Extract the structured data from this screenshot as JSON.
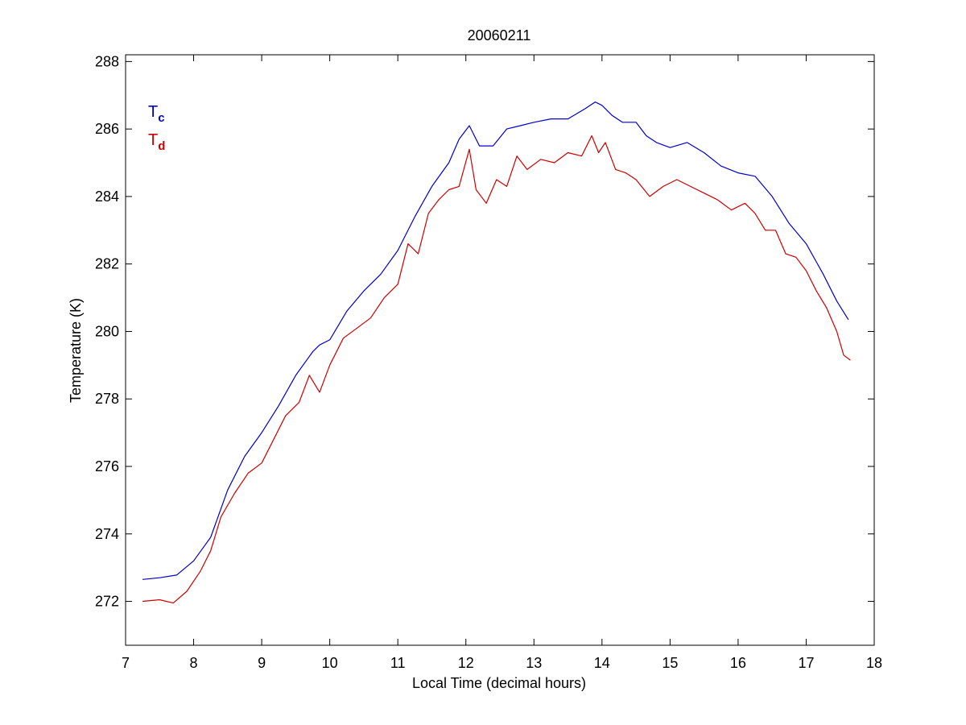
{
  "chart_data": {
    "type": "line",
    "title": "20060211",
    "xlabel": "Local Time (decimal hours)",
    "ylabel": "Temperature (K)",
    "xlim": [
      7,
      18
    ],
    "ylim": [
      270.7,
      288.2
    ],
    "xticks": [
      "7",
      "8",
      "9",
      "10",
      "11",
      "12",
      "13",
      "14",
      "15",
      "16",
      "17",
      "18"
    ],
    "yticks": [
      "272",
      "274",
      "276",
      "278",
      "280",
      "282",
      "284",
      "286",
      "288"
    ],
    "grid": false,
    "legend_position": "top-left",
    "series": [
      {
        "name": "T_c",
        "legend_main": "T",
        "legend_sub": "c",
        "color": "#0000cc",
        "points": [
          [
            7.25,
            272.65
          ],
          [
            7.5,
            272.7
          ],
          [
            7.75,
            272.78
          ],
          [
            8.0,
            273.2
          ],
          [
            8.25,
            273.9
          ],
          [
            8.5,
            275.3
          ],
          [
            8.75,
            276.3
          ],
          [
            9.0,
            277.0
          ],
          [
            9.25,
            277.8
          ],
          [
            9.5,
            278.7
          ],
          [
            9.75,
            279.4
          ],
          [
            9.85,
            279.6
          ],
          [
            10.0,
            279.75
          ],
          [
            10.25,
            280.6
          ],
          [
            10.5,
            281.2
          ],
          [
            10.75,
            281.7
          ],
          [
            11.0,
            282.4
          ],
          [
            11.25,
            283.4
          ],
          [
            11.5,
            284.3
          ],
          [
            11.75,
            285.0
          ],
          [
            11.9,
            285.7
          ],
          [
            12.05,
            286.1
          ],
          [
            12.2,
            285.5
          ],
          [
            12.4,
            285.5
          ],
          [
            12.6,
            286.0
          ],
          [
            12.8,
            286.1
          ],
          [
            13.0,
            286.2
          ],
          [
            13.25,
            286.3
          ],
          [
            13.5,
            286.3
          ],
          [
            13.75,
            286.6
          ],
          [
            13.9,
            286.8
          ],
          [
            14.0,
            286.7
          ],
          [
            14.15,
            286.4
          ],
          [
            14.3,
            286.2
          ],
          [
            14.5,
            286.2
          ],
          [
            14.65,
            285.8
          ],
          [
            14.8,
            285.6
          ],
          [
            15.0,
            285.45
          ],
          [
            15.25,
            285.6
          ],
          [
            15.5,
            285.3
          ],
          [
            15.75,
            284.9
          ],
          [
            16.0,
            284.7
          ],
          [
            16.25,
            284.6
          ],
          [
            16.5,
            284.0
          ],
          [
            16.75,
            283.2
          ],
          [
            17.0,
            282.6
          ],
          [
            17.25,
            281.7
          ],
          [
            17.45,
            280.9
          ],
          [
            17.62,
            280.35
          ]
        ]
      },
      {
        "name": "T_d",
        "legend_main": "T",
        "legend_sub": "d",
        "color": "#cc0000",
        "points": [
          [
            7.25,
            272.0
          ],
          [
            7.5,
            272.05
          ],
          [
            7.7,
            271.95
          ],
          [
            7.9,
            272.3
          ],
          [
            8.1,
            272.9
          ],
          [
            8.25,
            273.5
          ],
          [
            8.4,
            274.5
          ],
          [
            8.6,
            275.2
          ],
          [
            8.8,
            275.8
          ],
          [
            9.0,
            276.1
          ],
          [
            9.15,
            276.7
          ],
          [
            9.35,
            277.5
          ],
          [
            9.55,
            277.9
          ],
          [
            9.7,
            278.7
          ],
          [
            9.85,
            278.2
          ],
          [
            10.0,
            279.0
          ],
          [
            10.2,
            279.8
          ],
          [
            10.4,
            280.1
          ],
          [
            10.6,
            280.4
          ],
          [
            10.8,
            281.0
          ],
          [
            11.0,
            281.4
          ],
          [
            11.15,
            282.6
          ],
          [
            11.3,
            282.3
          ],
          [
            11.45,
            283.5
          ],
          [
            11.6,
            283.9
          ],
          [
            11.75,
            284.2
          ],
          [
            11.9,
            284.3
          ],
          [
            12.05,
            285.4
          ],
          [
            12.15,
            284.2
          ],
          [
            12.3,
            283.8
          ],
          [
            12.45,
            284.5
          ],
          [
            12.6,
            284.3
          ],
          [
            12.75,
            285.2
          ],
          [
            12.9,
            284.8
          ],
          [
            13.1,
            285.1
          ],
          [
            13.3,
            285.0
          ],
          [
            13.5,
            285.3
          ],
          [
            13.7,
            285.2
          ],
          [
            13.85,
            285.8
          ],
          [
            13.95,
            285.3
          ],
          [
            14.05,
            285.6
          ],
          [
            14.2,
            284.8
          ],
          [
            14.35,
            284.7
          ],
          [
            14.5,
            284.5
          ],
          [
            14.7,
            284.0
          ],
          [
            14.9,
            284.3
          ],
          [
            15.1,
            284.5
          ],
          [
            15.3,
            284.3
          ],
          [
            15.5,
            284.1
          ],
          [
            15.7,
            283.9
          ],
          [
            15.9,
            283.6
          ],
          [
            16.1,
            283.8
          ],
          [
            16.25,
            283.5
          ],
          [
            16.4,
            283.0
          ],
          [
            16.55,
            283.0
          ],
          [
            16.7,
            282.3
          ],
          [
            16.85,
            282.2
          ],
          [
            17.0,
            281.8
          ],
          [
            17.15,
            281.2
          ],
          [
            17.3,
            280.7
          ],
          [
            17.45,
            280.0
          ],
          [
            17.55,
            279.3
          ],
          [
            17.65,
            279.15
          ]
        ]
      }
    ]
  }
}
